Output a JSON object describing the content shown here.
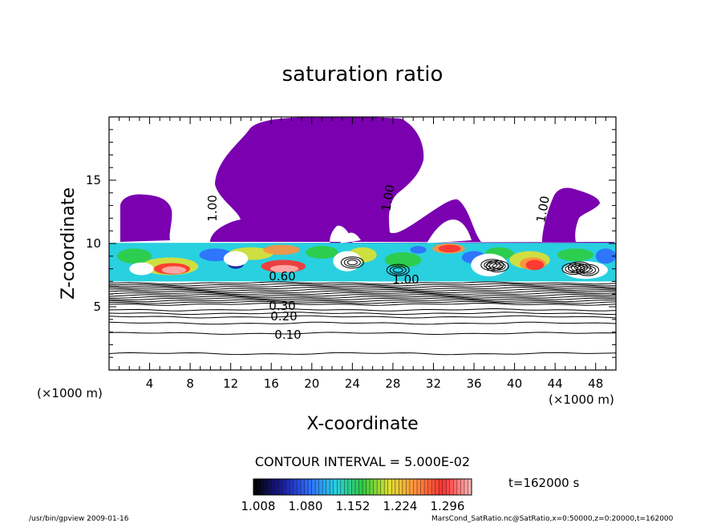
{
  "chart_data": {
    "type": "heatmap",
    "title": "saturation ratio",
    "xlabel": "X-coordinate",
    "ylabel": "Z-coordinate",
    "x_unit": "(×1000 m)",
    "y_unit": "(×1000 m)",
    "xlim": [
      0,
      50
    ],
    "ylim": [
      0,
      20
    ],
    "x_ticks": [
      "4",
      "8",
      "12",
      "16",
      "20",
      "24",
      "28",
      "32",
      "36",
      "40",
      "44",
      "48"
    ],
    "y_ticks": [
      "5",
      "10",
      "15"
    ],
    "contour_interval_text": "CONTOUR INTERVAL = 5.000E-02",
    "contour_labels": [
      "0.10",
      "0.20",
      "0.30",
      "0.60",
      "1.00"
    ],
    "colorbar_ticks": [
      "1.008",
      "1.080",
      "1.152",
      "1.224",
      "1.296"
    ],
    "colorbar_colors": [
      "#000000",
      "#1a1aa0",
      "#2f6cff",
      "#29d0e0",
      "#2ecc40",
      "#e0e030",
      "#ff9040",
      "#ff3030",
      "#ffb0b0"
    ],
    "cloud_color": "#7a00b0",
    "time_label": "t=162000 s",
    "footer_left": "/usr/bin/gpview   2009-01-16",
    "footer_right": "MarsCond_SatRatio.nc@SatRatio,x=0:50000,z=0:20000,t=162000"
  }
}
